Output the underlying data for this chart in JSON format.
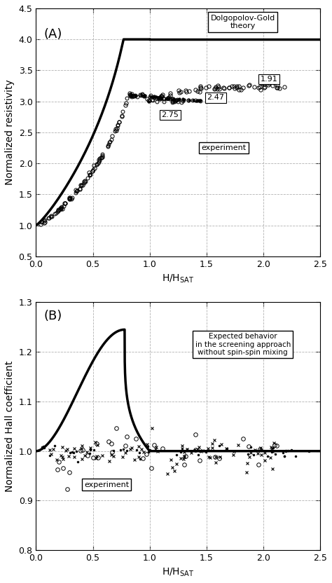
{
  "fig_width": 4.74,
  "fig_height": 8.32,
  "dpi": 100,
  "panel_A": {
    "label": "(A)",
    "ylabel": "Normalized resistivity",
    "xlim": [
      0,
      2.5
    ],
    "ylim": [
      0.5,
      4.5
    ],
    "yticks": [
      0.5,
      1.0,
      1.5,
      2.0,
      2.5,
      3.0,
      3.5,
      4.0,
      4.5
    ],
    "xticks": [
      0,
      0.5,
      1.0,
      1.5,
      2.0,
      2.5
    ],
    "theory_box_text": "Dolgopolov-Gold\ntheory",
    "experiment_label": "experiment",
    "curve_label_191": "1.91",
    "curve_label_247": "2.47",
    "curve_label_275": "2.75"
  },
  "panel_B": {
    "label": "(B)",
    "ylabel": "Normalized Hall coefficient",
    "xlim": [
      0,
      2.5
    ],
    "ylim": [
      0.8,
      1.3
    ],
    "yticks": [
      0.8,
      0.9,
      1.0,
      1.1,
      1.2,
      1.3
    ],
    "xticks": [
      0,
      0.5,
      1.0,
      1.5,
      2.0,
      2.5
    ],
    "theory_box_text": "Expected behavior\nin the screening approach\nwithout spin-spin mixing",
    "experiment_label": "experiment"
  }
}
